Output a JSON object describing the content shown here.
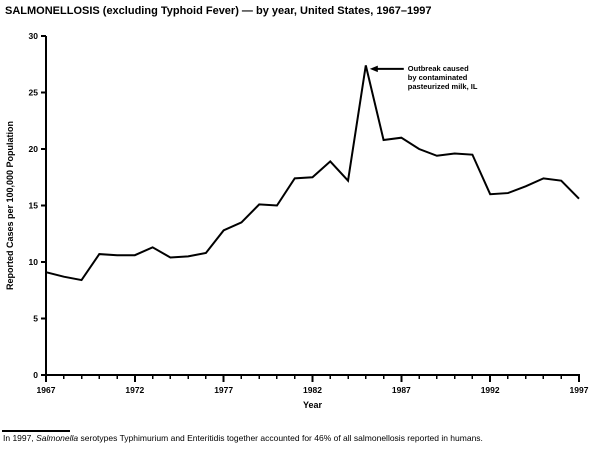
{
  "title": "SALMONELLOSIS (excluding Typhoid Fever) — by year, United States, 1967–1997",
  "chart_data": {
    "type": "line",
    "x": [
      1967,
      1968,
      1969,
      1970,
      1971,
      1972,
      1973,
      1974,
      1975,
      1976,
      1977,
      1978,
      1979,
      1980,
      1981,
      1982,
      1983,
      1984,
      1985,
      1986,
      1987,
      1988,
      1989,
      1990,
      1991,
      1992,
      1993,
      1994,
      1995,
      1996,
      1997
    ],
    "values": [
      9.1,
      8.7,
      8.4,
      10.7,
      10.6,
      10.6,
      11.3,
      10.4,
      10.5,
      10.8,
      12.8,
      13.5,
      15.1,
      15.0,
      17.4,
      17.5,
      18.9,
      17.2,
      27.4,
      20.8,
      21.0,
      20.0,
      19.4,
      19.6,
      19.5,
      16.0,
      16.1,
      16.7,
      17.4,
      17.2,
      15.6
    ],
    "title": "SALMONELLOSIS (excluding Typhoid Fever) — by year, United States, 1967–1997",
    "xlabel": "Year",
    "ylabel": "Reported Cases per 100,000 Population",
    "xlim": [
      1967,
      1997
    ],
    "ylim": [
      0,
      30
    ],
    "yticks": [
      0,
      5,
      10,
      15,
      20,
      25,
      30
    ],
    "xticks": [
      1967,
      1972,
      1977,
      1982,
      1987,
      1992,
      1997
    ],
    "grid": false,
    "legend": "none",
    "line_color": "#000000",
    "annotation": {
      "lines": [
        "Outbreak caused",
        "by contaminated",
        "pasteurized milk, IL"
      ],
      "target_year": 1985,
      "target_value": 27.4
    }
  },
  "footnote": {
    "part1": "In 1997, ",
    "italic": "Salmonella",
    "part2": " serotypes Typhimurium and Enteritidis together accounted for 46% of all salmonellosis reported in humans."
  }
}
